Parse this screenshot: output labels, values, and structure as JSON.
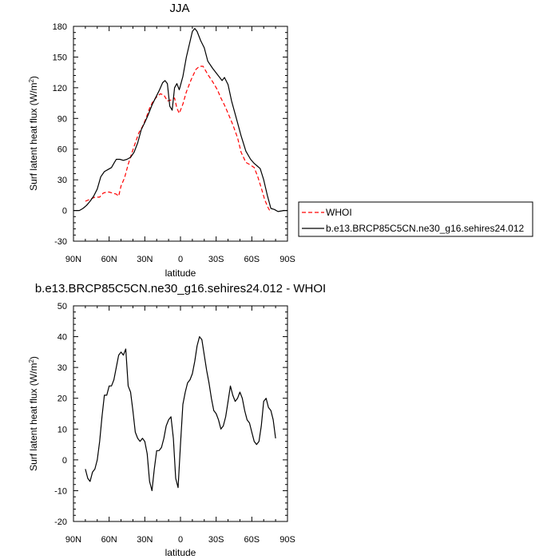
{
  "chart_data": [
    {
      "type": "line",
      "title": "JJA",
      "xlabel": "latitude",
      "ylabel": "Surf latent heat flux (W/m²)",
      "ylabel_main": "Surf latent heat flux (W/m",
      "ylabel_sup": "2",
      "ylabel_close": ")",
      "xlim": [
        90,
        -90
      ],
      "ylim": [
        -30,
        180
      ],
      "x_ticks": [
        90,
        60,
        30,
        0,
        -30,
        -60,
        -90
      ],
      "x_tick_labels": [
        "90N",
        "60N",
        "30N",
        "0",
        "30S",
        "60S",
        "90S"
      ],
      "y_ticks": [
        -30,
        0,
        30,
        60,
        90,
        120,
        150,
        180
      ],
      "y_tick_labels": [
        "-30",
        "0",
        "30",
        "60",
        "90",
        "120",
        "150",
        "180"
      ],
      "legend_placement": "right-outside",
      "series": [
        {
          "name": "WHOI",
          "color": "#ff0000",
          "dash": "dashed",
          "points": [
            [
              80,
              9
            ],
            [
              76,
              11
            ],
            [
              72,
              13
            ],
            [
              68,
              13
            ],
            [
              65,
              17
            ],
            [
              62,
              18
            ],
            [
              60,
              18
            ],
            [
              57,
              17
            ],
            [
              54,
              16
            ],
            [
              52,
              14
            ],
            [
              50,
              24
            ],
            [
              47,
              32
            ],
            [
              44,
              45
            ],
            [
              41,
              56
            ],
            [
              38,
              66
            ],
            [
              35,
              76
            ],
            [
              32,
              82
            ],
            [
              29,
              90
            ],
            [
              26,
              100
            ],
            [
              23,
              107
            ],
            [
              20,
              111
            ],
            [
              17,
              114
            ],
            [
              14,
              113
            ],
            [
              11,
              107
            ],
            [
              8,
              108
            ],
            [
              5,
              110
            ],
            [
              3,
              100
            ],
            [
              1,
              95
            ],
            [
              -2,
              104
            ],
            [
              -5,
              116
            ],
            [
              -9,
              128
            ],
            [
              -13,
              138
            ],
            [
              -16,
              141
            ],
            [
              -19,
              141
            ],
            [
              -23,
              133
            ],
            [
              -27,
              126
            ],
            [
              -31,
              118
            ],
            [
              -34,
              110
            ],
            [
              -37,
              103
            ],
            [
              -40,
              95
            ],
            [
              -44,
              84
            ],
            [
              -48,
              71
            ],
            [
              -51,
              57
            ],
            [
              -55,
              47
            ],
            [
              -58,
              45
            ],
            [
              -62,
              42
            ],
            [
              -65,
              33
            ],
            [
              -68,
              22
            ],
            [
              -71,
              10
            ],
            [
              -74,
              2
            ],
            [
              -76,
              -2
            ]
          ]
        },
        {
          "name": "b.e13.BRCP85C5CN.ne30_g16.sehires24.012",
          "color": "#000000",
          "dash": "solid",
          "points": [
            [
              90,
              0
            ],
            [
              85,
              0
            ],
            [
              82,
              2
            ],
            [
              79,
              5
            ],
            [
              76,
              9
            ],
            [
              73,
              14
            ],
            [
              70,
              21
            ],
            [
              67,
              33
            ],
            [
              64,
              38
            ],
            [
              61,
              40
            ],
            [
              58,
              42
            ],
            [
              56,
              46
            ],
            [
              54,
              50
            ],
            [
              51,
              50
            ],
            [
              48,
              49
            ],
            [
              45,
              50
            ],
            [
              42,
              52
            ],
            [
              39,
              57
            ],
            [
              36,
              66
            ],
            [
              33,
              79
            ],
            [
              30,
              86
            ],
            [
              27,
              94
            ],
            [
              24,
              103
            ],
            [
              21,
              110
            ],
            [
              18,
              117
            ],
            [
              15,
              125
            ],
            [
              13,
              127
            ],
            [
              11,
              124
            ],
            [
              9,
              102
            ],
            [
              7,
              98
            ],
            [
              5,
              120
            ],
            [
              3,
              124
            ],
            [
              1,
              118
            ],
            [
              -2,
              131
            ],
            [
              -5,
              150
            ],
            [
              -8,
              165
            ],
            [
              -10,
              175
            ],
            [
              -12,
              178
            ],
            [
              -14,
              175
            ],
            [
              -17,
              166
            ],
            [
              -20,
              159
            ],
            [
              -23,
              146
            ],
            [
              -27,
              139
            ],
            [
              -31,
              133
            ],
            [
              -35,
              127
            ],
            [
              -37,
              130
            ],
            [
              -40,
              123
            ],
            [
              -43,
              107
            ],
            [
              -47,
              90
            ],
            [
              -51,
              73
            ],
            [
              -55,
              58
            ],
            [
              -59,
              50
            ],
            [
              -62,
              46
            ],
            [
              -65,
              43
            ],
            [
              -67,
              41
            ],
            [
              -70,
              30
            ],
            [
              -73,
              15
            ],
            [
              -76,
              2
            ],
            [
              -79,
              1
            ],
            [
              -82,
              -1
            ],
            [
              -87,
              0
            ],
            [
              -90,
              0
            ]
          ]
        }
      ]
    },
    {
      "type": "line",
      "title": "b.e13.BRCP85C5CN.ne30_g16.sehires24.012 - WHOI",
      "xlabel": "latitude",
      "ylabel": "Surf latent heat flux (W/m²)",
      "ylabel_main": "Surf latent heat flux (W/m",
      "ylabel_sup": "2",
      "ylabel_close": ")",
      "xlim": [
        90,
        -90
      ],
      "ylim": [
        -20,
        50
      ],
      "x_ticks": [
        90,
        60,
        30,
        0,
        -30,
        -60,
        -90
      ],
      "x_tick_labels": [
        "90N",
        "60N",
        "30N",
        "0",
        "30S",
        "60S",
        "90S"
      ],
      "y_ticks": [
        -20,
        -10,
        0,
        10,
        20,
        30,
        40,
        50
      ],
      "y_tick_labels": [
        "-20",
        "-10",
        "0",
        "10",
        "20",
        "30",
        "40",
        "50"
      ],
      "series": [
        {
          "color": "#000000",
          "dash": "solid",
          "points": [
            [
              80,
              -3
            ],
            [
              78,
              -6
            ],
            [
              76,
              -7
            ],
            [
              74,
              -4
            ],
            [
              72,
              -3
            ],
            [
              70,
              0
            ],
            [
              68,
              6
            ],
            [
              66,
              14
            ],
            [
              64,
              21
            ],
            [
              62,
              21
            ],
            [
              60,
              24
            ],
            [
              58,
              24
            ],
            [
              56,
              26
            ],
            [
              54,
              30
            ],
            [
              52,
              34
            ],
            [
              50,
              35
            ],
            [
              48,
              34
            ],
            [
              46,
              36
            ],
            [
              44,
              24
            ],
            [
              42,
              22
            ],
            [
              40,
              16
            ],
            [
              38,
              9
            ],
            [
              36,
              7
            ],
            [
              34,
              6
            ],
            [
              32,
              7
            ],
            [
              30,
              6
            ],
            [
              28,
              2
            ],
            [
              26,
              -7
            ],
            [
              24,
              -10
            ],
            [
              22,
              -3
            ],
            [
              20,
              3
            ],
            [
              18,
              3
            ],
            [
              16,
              4
            ],
            [
              14,
              7
            ],
            [
              12,
              11
            ],
            [
              10,
              13
            ],
            [
              8,
              14
            ],
            [
              6,
              7
            ],
            [
              4,
              -6
            ],
            [
              2,
              -9
            ],
            [
              0,
              5
            ],
            [
              -2,
              18
            ],
            [
              -4,
              22
            ],
            [
              -6,
              25
            ],
            [
              -8,
              26
            ],
            [
              -10,
              28
            ],
            [
              -12,
              32
            ],
            [
              -14,
              37
            ],
            [
              -16,
              40
            ],
            [
              -18,
              39
            ],
            [
              -20,
              34
            ],
            [
              -22,
              29
            ],
            [
              -24,
              25
            ],
            [
              -26,
              20
            ],
            [
              -28,
              16
            ],
            [
              -30,
              15
            ],
            [
              -32,
              13
            ],
            [
              -34,
              10
            ],
            [
              -36,
              11
            ],
            [
              -38,
              14
            ],
            [
              -40,
              19
            ],
            [
              -42,
              24
            ],
            [
              -44,
              21
            ],
            [
              -46,
              19
            ],
            [
              -48,
              20
            ],
            [
              -50,
              22
            ],
            [
              -52,
              20
            ],
            [
              -54,
              16
            ],
            [
              -56,
              13
            ],
            [
              -58,
              12
            ],
            [
              -60,
              9
            ],
            [
              -62,
              6
            ],
            [
              -64,
              5
            ],
            [
              -66,
              6
            ],
            [
              -68,
              11
            ],
            [
              -70,
              19
            ],
            [
              -72,
              20
            ],
            [
              -74,
              17
            ],
            [
              -76,
              16
            ],
            [
              -78,
              13
            ],
            [
              -80,
              7
            ]
          ]
        }
      ]
    }
  ]
}
